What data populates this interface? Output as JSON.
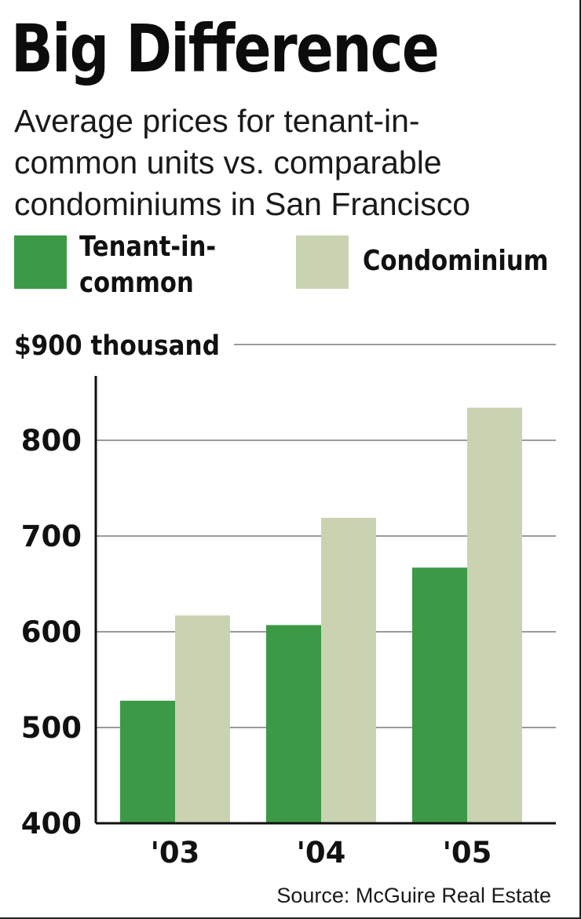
{
  "title": "Big Difference",
  "subtitle_lines": [
    "Average prices for tenant-in-",
    "common units vs. comparable",
    "condominiums in San Francisco"
  ],
  "legend": {
    "tic_lines": [
      "Tenant-in-",
      "common"
    ],
    "condo": "Condominium"
  },
  "source": "Source: McGuire Real Estate",
  "colors": {
    "tic": "#3c9a46",
    "condo": "#c9d3b2",
    "grid": "#9a9a9a",
    "axis": "#111111"
  },
  "chart_data": {
    "type": "bar",
    "categories": [
      "'03",
      "'04",
      "'05"
    ],
    "series": [
      {
        "name": "Tenant-in-common",
        "values": [
          528,
          607,
          667
        ]
      },
      {
        "name": "Condominium",
        "values": [
          617,
          719,
          834
        ]
      }
    ],
    "y_ticks": [
      400,
      500,
      600,
      700,
      800,
      900
    ],
    "y_tick_labels": [
      "400",
      "500",
      "600",
      "700",
      "800",
      "$900 thousand"
    ],
    "ylim": [
      400,
      900
    ],
    "grid": true
  }
}
